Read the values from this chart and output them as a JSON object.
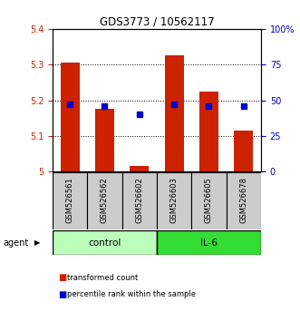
{
  "title": "GDS3773 / 10562117",
  "samples": [
    "GSM526561",
    "GSM526562",
    "GSM526602",
    "GSM526603",
    "GSM526605",
    "GSM526678"
  ],
  "red_values": [
    5.305,
    5.175,
    5.015,
    5.325,
    5.225,
    5.115
  ],
  "blue_values": [
    5.19,
    5.185,
    5.16,
    5.19,
    5.185,
    5.185
  ],
  "ylim_left": [
    5.0,
    5.4
  ],
  "ylim_right": [
    0,
    100
  ],
  "yticks_left": [
    5.0,
    5.1,
    5.2,
    5.3,
    5.4
  ],
  "ytick_labels_left": [
    "5",
    "5.1",
    "5.2",
    "5.3",
    "5.4"
  ],
  "yticks_right": [
    0,
    25,
    50,
    75,
    100
  ],
  "ytick_labels_right": [
    "0",
    "25",
    "50",
    "75",
    "100%"
  ],
  "groups": [
    {
      "label": "control",
      "indices": [
        0,
        1,
        2
      ],
      "color": "#bbffbb"
    },
    {
      "label": "IL-6",
      "indices": [
        3,
        4,
        5
      ],
      "color": "#33dd33"
    }
  ],
  "bar_color": "#cc2200",
  "dot_color": "#0000cc",
  "bar_width": 0.55,
  "agent_label": "agent",
  "legend_items": [
    {
      "color": "#cc2200",
      "label": "transformed count"
    },
    {
      "color": "#0000cc",
      "label": "percentile rank within the sample"
    }
  ],
  "left_tick_color": "#cc2200",
  "right_tick_color": "#0000cc",
  "grid_color": "black",
  "sample_box_color": "#cccccc",
  "background_color": "#ffffff"
}
